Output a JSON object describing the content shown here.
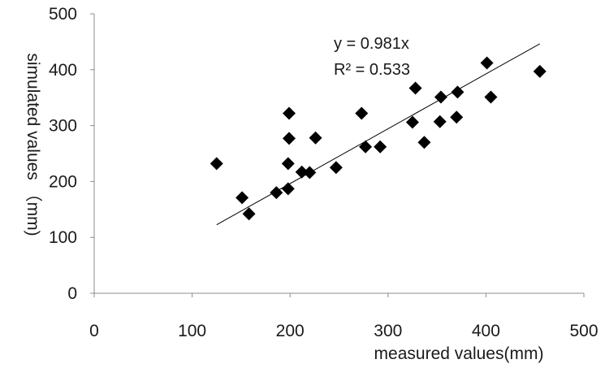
{
  "chart_data": {
    "type": "scatter",
    "xlabel": "measured values(mm)",
    "ylabel": "simulated values （mm)",
    "xlim": [
      0,
      500
    ],
    "ylim": [
      0,
      500
    ],
    "x_ticks": [
      "0",
      "100",
      "200",
      "300",
      "400",
      "500"
    ],
    "y_ticks": [
      "0",
      "100",
      "200",
      "300",
      "400",
      "500"
    ],
    "grid": false,
    "legend": "none",
    "marker": "diamond",
    "marker_color": "#000000",
    "series": [
      {
        "points": [
          [
            125,
            232
          ],
          [
            151,
            171
          ],
          [
            158,
            142
          ],
          [
            186,
            180
          ],
          [
            198,
            187
          ],
          [
            198,
            232
          ],
          [
            199,
            277
          ],
          [
            199,
            322
          ],
          [
            212,
            217
          ],
          [
            220,
            216
          ],
          [
            226,
            278
          ],
          [
            247,
            225
          ],
          [
            273,
            322
          ],
          [
            277,
            262
          ],
          [
            292,
            262
          ],
          [
            325,
            306
          ],
          [
            328,
            367
          ],
          [
            337,
            270
          ],
          [
            353,
            307
          ],
          [
            354,
            351
          ],
          [
            370,
            315
          ],
          [
            371,
            360
          ],
          [
            401,
            412
          ],
          [
            405,
            351
          ],
          [
            455,
            397
          ]
        ]
      }
    ],
    "trendline": {
      "slope": 0.981,
      "x_range": [
        125,
        455
      ],
      "equation": "y = 0.981x",
      "r_squared": "R² = 0.533"
    }
  }
}
